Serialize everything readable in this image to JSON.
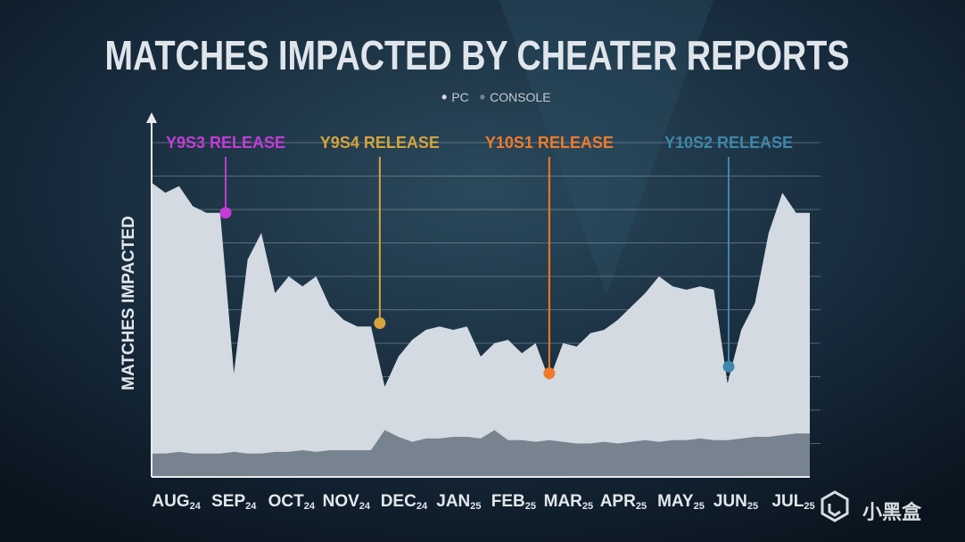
{
  "chart_data": {
    "type": "area",
    "title": "MATCHES IMPACTED BY CHEATER REPORTS",
    "y_label": "MATCHES IMPACTED",
    "watermark": "小黑盒",
    "x": [
      0,
      0.25,
      0.5,
      0.75,
      1,
      1.25,
      1.5,
      1.75,
      2,
      2.25,
      2.5,
      2.75,
      3,
      3.25,
      3.5,
      3.75,
      4,
      4.25,
      4.5,
      4.75,
      5,
      5.25,
      5.5,
      5.75,
      6,
      6.25,
      6.5,
      6.75,
      7,
      7.25,
      7.5,
      7.75,
      8,
      8.25,
      8.5,
      8.75,
      9,
      9.25,
      9.5,
      9.75,
      10,
      10.25,
      10.5,
      10.75,
      11,
      11.25,
      11.5,
      11.75,
      12
    ],
    "series": [
      {
        "name": "PC",
        "color": "#d3dae2",
        "values": [
          8.8,
          8.5,
          8.7,
          8.1,
          7.9,
          7.9,
          3.1,
          6.5,
          7.3,
          5.5,
          6.0,
          5.7,
          6.0,
          5.1,
          4.7,
          4.5,
          4.5,
          2.7,
          3.6,
          4.1,
          4.4,
          4.5,
          4.4,
          4.5,
          3.6,
          4.0,
          4.1,
          3.7,
          4.0,
          2.9,
          4.0,
          3.9,
          4.3,
          4.4,
          4.7,
          5.1,
          5.5,
          6.0,
          5.7,
          5.6,
          5.7,
          5.6,
          2.8,
          4.4,
          5.2,
          7.3,
          8.5,
          7.9,
          7.9
        ]
      },
      {
        "name": "CONSOLE",
        "color": "#77838f",
        "values": [
          0.7,
          0.7,
          0.75,
          0.7,
          0.7,
          0.7,
          0.75,
          0.7,
          0.7,
          0.75,
          0.75,
          0.8,
          0.75,
          0.8,
          0.8,
          0.8,
          0.8,
          1.4,
          1.2,
          1.05,
          1.15,
          1.15,
          1.2,
          1.2,
          1.15,
          1.4,
          1.1,
          1.1,
          1.05,
          1.1,
          1.05,
          1.0,
          1.0,
          1.05,
          1.0,
          1.05,
          1.1,
          1.05,
          1.1,
          1.1,
          1.15,
          1.1,
          1.1,
          1.15,
          1.2,
          1.2,
          1.25,
          1.3,
          1.3
        ]
      }
    ],
    "xlim": [
      0,
      12
    ],
    "xticks": [
      {
        "value": 0.45,
        "label": "AUG",
        "year": "24"
      },
      {
        "value": 1.5,
        "label": "SEP",
        "year": "24"
      },
      {
        "value": 2.55,
        "label": "OCT",
        "year": "24"
      },
      {
        "value": 3.55,
        "label": "NOV",
        "year": "24"
      },
      {
        "value": 4.6,
        "label": "DEC",
        "year": "24"
      },
      {
        "value": 5.6,
        "label": "JAN",
        "year": "25"
      },
      {
        "value": 6.6,
        "label": "FEB",
        "year": "25"
      },
      {
        "value": 7.6,
        "label": "MAR",
        "year": "25"
      },
      {
        "value": 8.6,
        "label": "APR",
        "year": "25"
      },
      {
        "value": 9.65,
        "label": "MAY",
        "year": "25"
      },
      {
        "value": 10.65,
        "label": "JUN",
        "year": "25"
      },
      {
        "value": 11.7,
        "label": "JUL",
        "year": "25"
      }
    ],
    "ylim": [
      0,
      10.8
    ],
    "yticks": [
      1,
      2,
      3,
      4,
      5,
      6,
      7,
      8,
      9,
      10
    ],
    "y_tick_labels": false,
    "grid": true,
    "annotations": [
      {
        "label": "Y9S3 RELEASE",
        "color": "#c63bd8",
        "x": 1.35,
        "value": 7.9
      },
      {
        "label": "Y9S4 RELEASE",
        "color": "#d6a33c",
        "x": 4.16,
        "value": 4.6
      },
      {
        "label": "Y10S1 RELEASE",
        "color": "#f07a2a",
        "x": 7.25,
        "value": 3.1
      },
      {
        "label": "Y10S2 RELEASE",
        "color": "#3f87aa",
        "x": 10.52,
        "value": 3.3
      }
    ]
  }
}
